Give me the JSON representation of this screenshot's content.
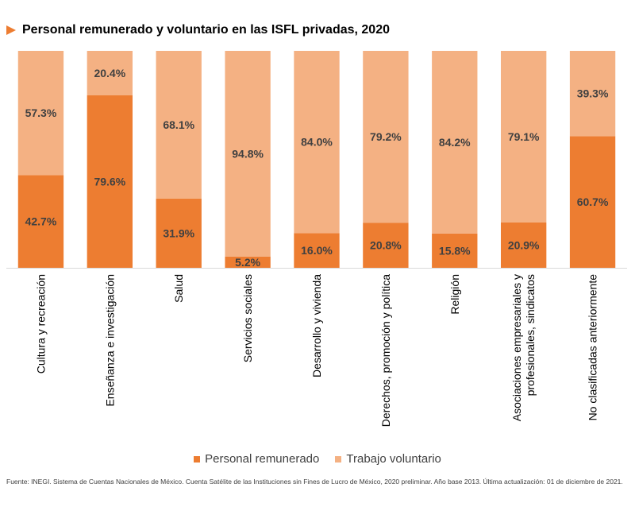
{
  "title": "Personal remunerado y voluntario en las ISFL privadas, 2020",
  "chart_data": {
    "type": "bar",
    "stacked": true,
    "title": "Personal remunerado y voluntario en las ISFL privadas, 2020",
    "categories": [
      "Cultura y recreación",
      "Enseñanza e investigación",
      "Salud",
      "Servicios sociales",
      "Desarrollo y vivienda",
      "Derechos, promoción y política",
      "Religión",
      "Asociaciones empresariales y profesionales, sindicatos",
      "No clasificadas anteriormente"
    ],
    "category_lines": [
      [
        "Cultura y recreación"
      ],
      [
        "Enseñanza e investigación"
      ],
      [
        "Salud"
      ],
      [
        "Servicios sociales"
      ],
      [
        "Desarrollo y vivienda"
      ],
      [
        "Derechos, promoción y política"
      ],
      [
        "Religión"
      ],
      [
        "Asociaciones empresariales y",
        "profesionales, sindicatos"
      ],
      [
        "No clasificadas anteriormente"
      ]
    ],
    "series": [
      {
        "name": "Personal remunerado",
        "color": "#ED7D31",
        "values": [
          42.7,
          79.6,
          31.9,
          5.2,
          16.0,
          20.8,
          15.8,
          20.9,
          60.7
        ],
        "labels": [
          "42.7%",
          "79.6%",
          "31.9%",
          "5.2%",
          "16.0%",
          "20.8%",
          "15.8%",
          "20.9%",
          "60.7%"
        ]
      },
      {
        "name": "Trabajo voluntario",
        "color": "#F4B183",
        "values": [
          57.3,
          20.4,
          68.1,
          94.8,
          84.0,
          79.2,
          84.2,
          79.1,
          39.3
        ],
        "labels": [
          "57.3%",
          "20.4%",
          "68.1%",
          "94.8%",
          "84.0%",
          "79.2%",
          "84.2%",
          "79.1%",
          "39.3%"
        ]
      }
    ],
    "ylim": [
      0,
      100
    ],
    "xlabel": "",
    "ylabel": "",
    "grid": false,
    "legend_position": "bottom"
  },
  "legend": {
    "paid_label": "Personal remunerado",
    "volunteer_label": "Trabajo voluntario"
  },
  "source": "Fuente: INEGI. Sistema de Cuentas Nacionales de México. Cuenta Satélite de las Instituciones sin Fines de Lucro de México, 2020  preliminar. Año base 2013.  Última actualización: 01 de diciembre de 2021."
}
